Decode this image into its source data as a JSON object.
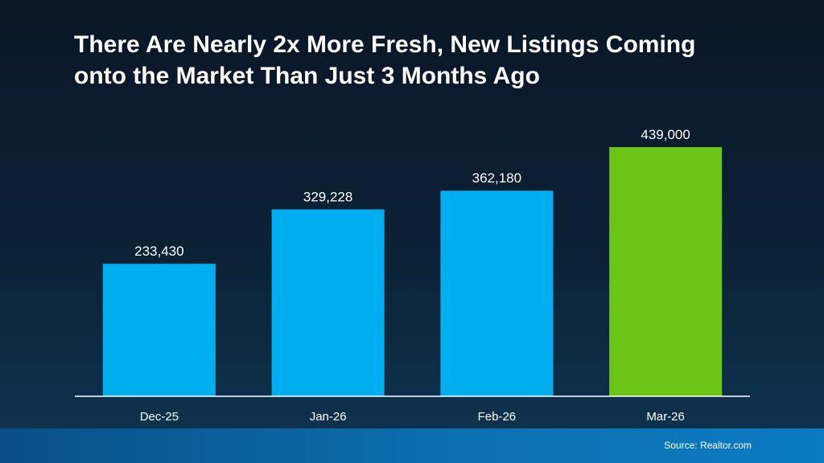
{
  "chart_data": {
    "type": "bar",
    "title": "There Are Nearly 2x More Fresh, New Listings Coming onto the Market Than Just 3 Months Ago",
    "categories": [
      "Dec-25",
      "Jan-26",
      "Feb-26",
      "Mar-26"
    ],
    "values": [
      233430,
      329228,
      362180,
      439000
    ],
    "value_labels": [
      "233,430",
      "329,228",
      "362,180",
      "439,000"
    ],
    "colors": [
      "#00aeef",
      "#00aeef",
      "#00aeef",
      "#6cc417"
    ],
    "source": "Source: Realtor.com"
  }
}
